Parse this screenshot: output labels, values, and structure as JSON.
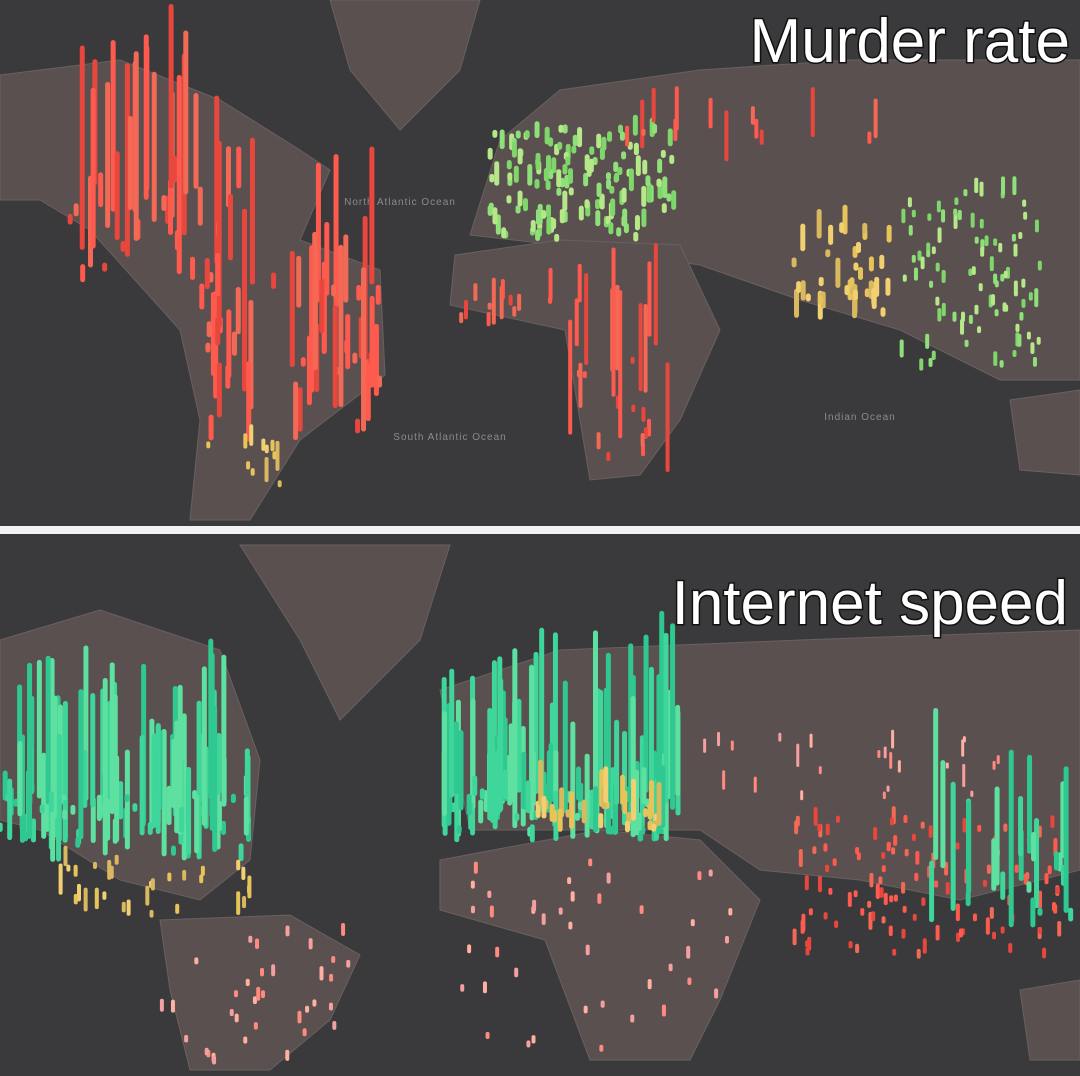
{
  "panels": [
    {
      "title": "Murder rate",
      "ocean_labels": [
        "North Atlantic Ocean",
        "South Atlantic Ocean",
        "Indian Ocean"
      ]
    },
    {
      "title": "Internet speed"
    }
  ]
}
